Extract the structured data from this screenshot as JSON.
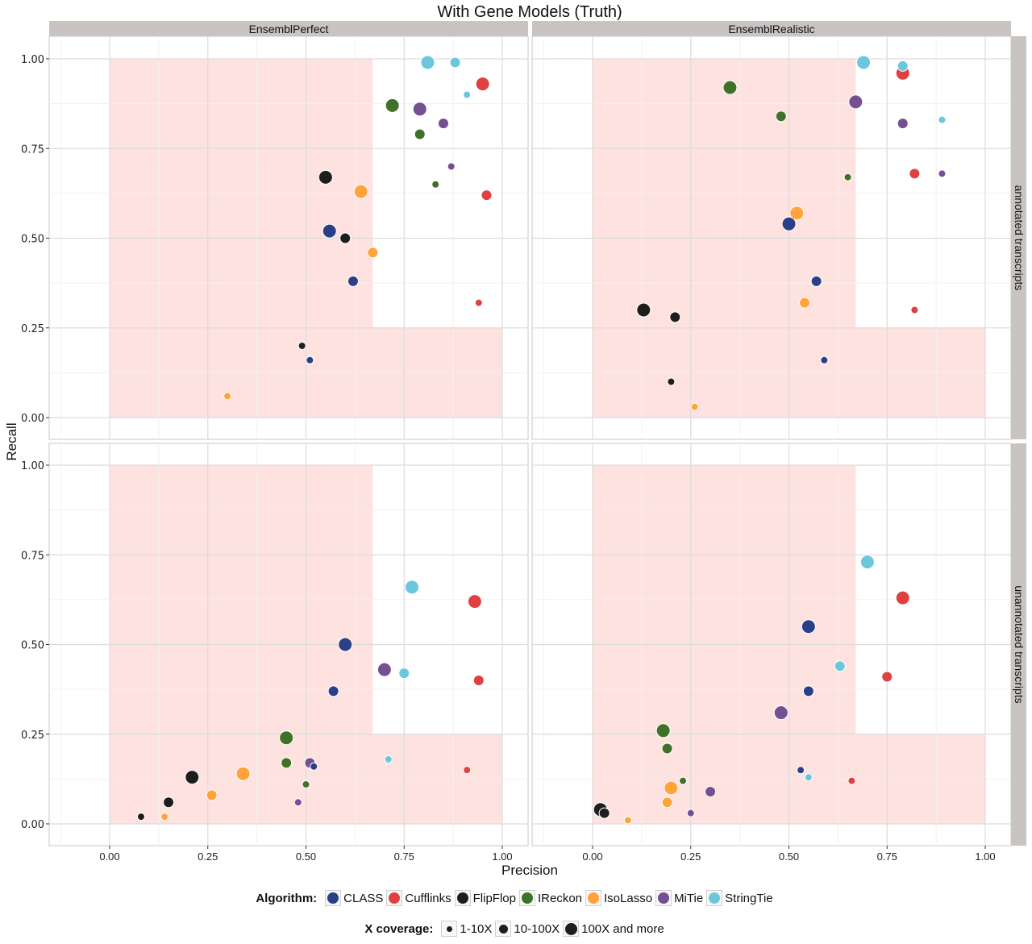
{
  "chart_data": {
    "type": "scatter",
    "title": "With Gene Models (Truth)",
    "xlabel": "Precision",
    "ylabel": "Recall",
    "xlim": [
      -0.15,
      1.06
    ],
    "ylim": [
      -0.06,
      1.07
    ],
    "x_ticks": [
      "0.00",
      "0.25",
      "0.50",
      "0.75",
      "1.00"
    ],
    "y_ticks": [
      "0.00",
      "0.25",
      "0.50",
      "0.75",
      "1.00"
    ],
    "grid": true,
    "columns": [
      "EnsemblPerfect",
      "EnsemblRealistic"
    ],
    "rows": [
      "annotated transcripts",
      "unannotated transcripts"
    ],
    "shaded_region": [
      {
        "x": [
          0,
          0.67
        ],
        "y": [
          0,
          1.0
        ]
      },
      {
        "x": [
          0,
          1.0
        ],
        "y": [
          0,
          0.25
        ]
      }
    ],
    "algorithms": [
      {
        "name": "CLASS",
        "color": "#2b3f86"
      },
      {
        "name": "Cufflinks",
        "color": "#e04040"
      },
      {
        "name": "FlipFlop",
        "color": "#1e1e1e"
      },
      {
        "name": "IReckon",
        "color": "#3f7129"
      },
      {
        "name": "IsoLasso",
        "color": "#ffa33a"
      },
      {
        "name": "MiTie",
        "color": "#744f91"
      },
      {
        "name": "StringTie",
        "color": "#6bc8dc"
      }
    ],
    "coverages": [
      "1-10X",
      "10-100X",
      "100X and more"
    ],
    "panels": [
      {
        "column": "EnsemblPerfect",
        "row": "annotated transcripts",
        "points": [
          {
            "alg": "StringTie",
            "cov": "100X and more",
            "x": 0.81,
            "y": 0.99
          },
          {
            "alg": "StringTie",
            "cov": "10-100X",
            "x": 0.88,
            "y": 0.99
          },
          {
            "alg": "StringTie",
            "cov": "1-10X",
            "x": 0.91,
            "y": 0.9
          },
          {
            "alg": "Cufflinks",
            "cov": "100X and more",
            "x": 0.95,
            "y": 0.93
          },
          {
            "alg": "Cufflinks",
            "cov": "10-100X",
            "x": 0.96,
            "y": 0.62
          },
          {
            "alg": "Cufflinks",
            "cov": "1-10X",
            "x": 0.94,
            "y": 0.32
          },
          {
            "alg": "IReckon",
            "cov": "100X and more",
            "x": 0.72,
            "y": 0.87
          },
          {
            "alg": "IReckon",
            "cov": "10-100X",
            "x": 0.79,
            "y": 0.79
          },
          {
            "alg": "IReckon",
            "cov": "1-10X",
            "x": 0.83,
            "y": 0.65
          },
          {
            "alg": "MiTie",
            "cov": "100X and more",
            "x": 0.79,
            "y": 0.86
          },
          {
            "alg": "MiTie",
            "cov": "10-100X",
            "x": 0.85,
            "y": 0.82
          },
          {
            "alg": "MiTie",
            "cov": "1-10X",
            "x": 0.87,
            "y": 0.7
          },
          {
            "alg": "FlipFlop",
            "cov": "100X and more",
            "x": 0.55,
            "y": 0.67
          },
          {
            "alg": "FlipFlop",
            "cov": "10-100X",
            "x": 0.6,
            "y": 0.5
          },
          {
            "alg": "FlipFlop",
            "cov": "1-10X",
            "x": 0.49,
            "y": 0.2
          },
          {
            "alg": "IsoLasso",
            "cov": "100X and more",
            "x": 0.64,
            "y": 0.63
          },
          {
            "alg": "IsoLasso",
            "cov": "10-100X",
            "x": 0.67,
            "y": 0.46
          },
          {
            "alg": "IsoLasso",
            "cov": "1-10X",
            "x": 0.3,
            "y": 0.06
          },
          {
            "alg": "CLASS",
            "cov": "100X and more",
            "x": 0.56,
            "y": 0.52
          },
          {
            "alg": "CLASS",
            "cov": "10-100X",
            "x": 0.62,
            "y": 0.38
          },
          {
            "alg": "CLASS",
            "cov": "1-10X",
            "x": 0.51,
            "y": 0.16
          }
        ]
      },
      {
        "column": "EnsemblRealistic",
        "row": "annotated transcripts",
        "points": [
          {
            "alg": "StringTie",
            "cov": "100X and more",
            "x": 0.69,
            "y": 0.99
          },
          {
            "alg": "StringTie",
            "cov": "10-100X",
            "x": 0.79,
            "y": 0.98
          },
          {
            "alg": "StringTie",
            "cov": "1-10X",
            "x": 0.89,
            "y": 0.83
          },
          {
            "alg": "Cufflinks",
            "cov": "100X and more",
            "x": 0.79,
            "y": 0.96
          },
          {
            "alg": "Cufflinks",
            "cov": "10-100X",
            "x": 0.82,
            "y": 0.68
          },
          {
            "alg": "Cufflinks",
            "cov": "1-10X",
            "x": 0.82,
            "y": 0.3
          },
          {
            "alg": "IReckon",
            "cov": "100X and more",
            "x": 0.35,
            "y": 0.92
          },
          {
            "alg": "IReckon",
            "cov": "10-100X",
            "x": 0.48,
            "y": 0.84
          },
          {
            "alg": "IReckon",
            "cov": "1-10X",
            "x": 0.65,
            "y": 0.67
          },
          {
            "alg": "MiTie",
            "cov": "100X and more",
            "x": 0.67,
            "y": 0.88
          },
          {
            "alg": "MiTie",
            "cov": "10-100X",
            "x": 0.79,
            "y": 0.82
          },
          {
            "alg": "MiTie",
            "cov": "1-10X",
            "x": 0.89,
            "y": 0.68
          },
          {
            "alg": "IsoLasso",
            "cov": "100X and more",
            "x": 0.52,
            "y": 0.57
          },
          {
            "alg": "IsoLasso",
            "cov": "10-100X",
            "x": 0.54,
            "y": 0.32
          },
          {
            "alg": "IsoLasso",
            "cov": "1-10X",
            "x": 0.26,
            "y": 0.03
          },
          {
            "alg": "CLASS",
            "cov": "100X and more",
            "x": 0.5,
            "y": 0.54
          },
          {
            "alg": "CLASS",
            "cov": "10-100X",
            "x": 0.57,
            "y": 0.38
          },
          {
            "alg": "CLASS",
            "cov": "1-10X",
            "x": 0.59,
            "y": 0.16
          },
          {
            "alg": "FlipFlop",
            "cov": "100X and more",
            "x": 0.13,
            "y": 0.3
          },
          {
            "alg": "FlipFlop",
            "cov": "10-100X",
            "x": 0.21,
            "y": 0.28
          },
          {
            "alg": "FlipFlop",
            "cov": "1-10X",
            "x": 0.2,
            "y": 0.1
          }
        ]
      },
      {
        "column": "EnsemblPerfect",
        "row": "unannotated transcripts",
        "points": [
          {
            "alg": "StringTie",
            "cov": "100X and more",
            "x": 0.77,
            "y": 0.66
          },
          {
            "alg": "StringTie",
            "cov": "10-100X",
            "x": 0.75,
            "y": 0.42
          },
          {
            "alg": "StringTie",
            "cov": "1-10X",
            "x": 0.71,
            "y": 0.18
          },
          {
            "alg": "Cufflinks",
            "cov": "100X and more",
            "x": 0.93,
            "y": 0.62
          },
          {
            "alg": "Cufflinks",
            "cov": "10-100X",
            "x": 0.94,
            "y": 0.4
          },
          {
            "alg": "Cufflinks",
            "cov": "1-10X",
            "x": 0.91,
            "y": 0.15
          },
          {
            "alg": "CLASS",
            "cov": "100X and more",
            "x": 0.6,
            "y": 0.5
          },
          {
            "alg": "CLASS",
            "cov": "10-100X",
            "x": 0.57,
            "y": 0.37
          },
          {
            "alg": "CLASS",
            "cov": "1-10X",
            "x": 0.52,
            "y": 0.16
          },
          {
            "alg": "MiTie",
            "cov": "100X and more",
            "x": 0.7,
            "y": 0.43
          },
          {
            "alg": "MiTie",
            "cov": "10-100X",
            "x": 0.51,
            "y": 0.17
          },
          {
            "alg": "MiTie",
            "cov": "1-10X",
            "x": 0.48,
            "y": 0.06
          },
          {
            "alg": "IReckon",
            "cov": "100X and more",
            "x": 0.45,
            "y": 0.24
          },
          {
            "alg": "IReckon",
            "cov": "10-100X",
            "x": 0.45,
            "y": 0.17
          },
          {
            "alg": "IReckon",
            "cov": "1-10X",
            "x": 0.5,
            "y": 0.11
          },
          {
            "alg": "FlipFlop",
            "cov": "100X and more",
            "x": 0.21,
            "y": 0.13
          },
          {
            "alg": "FlipFlop",
            "cov": "10-100X",
            "x": 0.15,
            "y": 0.06
          },
          {
            "alg": "FlipFlop",
            "cov": "1-10X",
            "x": 0.08,
            "y": 0.02
          },
          {
            "alg": "IsoLasso",
            "cov": "100X and more",
            "x": 0.34,
            "y": 0.14
          },
          {
            "alg": "IsoLasso",
            "cov": "10-100X",
            "x": 0.26,
            "y": 0.08
          },
          {
            "alg": "IsoLasso",
            "cov": "1-10X",
            "x": 0.14,
            "y": 0.02
          }
        ]
      },
      {
        "column": "EnsemblRealistic",
        "row": "unannotated transcripts",
        "points": [
          {
            "alg": "StringTie",
            "cov": "100X and more",
            "x": 0.7,
            "y": 0.73
          },
          {
            "alg": "StringTie",
            "cov": "10-100X",
            "x": 0.63,
            "y": 0.44
          },
          {
            "alg": "StringTie",
            "cov": "1-10X",
            "x": 0.55,
            "y": 0.13
          },
          {
            "alg": "Cufflinks",
            "cov": "100X and more",
            "x": 0.79,
            "y": 0.63
          },
          {
            "alg": "Cufflinks",
            "cov": "10-100X",
            "x": 0.75,
            "y": 0.41
          },
          {
            "alg": "Cufflinks",
            "cov": "1-10X",
            "x": 0.66,
            "y": 0.12
          },
          {
            "alg": "CLASS",
            "cov": "100X and more",
            "x": 0.55,
            "y": 0.55
          },
          {
            "alg": "CLASS",
            "cov": "10-100X",
            "x": 0.55,
            "y": 0.37
          },
          {
            "alg": "CLASS",
            "cov": "1-10X",
            "x": 0.53,
            "y": 0.15
          },
          {
            "alg": "MiTie",
            "cov": "100X and more",
            "x": 0.48,
            "y": 0.31
          },
          {
            "alg": "MiTie",
            "cov": "10-100X",
            "x": 0.3,
            "y": 0.09
          },
          {
            "alg": "MiTie",
            "cov": "1-10X",
            "x": 0.25,
            "y": 0.03
          },
          {
            "alg": "IReckon",
            "cov": "100X and more",
            "x": 0.18,
            "y": 0.26
          },
          {
            "alg": "IReckon",
            "cov": "10-100X",
            "x": 0.19,
            "y": 0.21
          },
          {
            "alg": "IReckon",
            "cov": "1-10X",
            "x": 0.23,
            "y": 0.12
          },
          {
            "alg": "IsoLasso",
            "cov": "100X and more",
            "x": 0.2,
            "y": 0.1
          },
          {
            "alg": "IsoLasso",
            "cov": "10-100X",
            "x": 0.19,
            "y": 0.06
          },
          {
            "alg": "IsoLasso",
            "cov": "1-10X",
            "x": 0.09,
            "y": 0.01
          },
          {
            "alg": "FlipFlop",
            "cov": "100X and more",
            "x": 0.02,
            "y": 0.04
          },
          {
            "alg": "FlipFlop",
            "cov": "10-100X",
            "x": 0.03,
            "y": 0.03
          }
        ]
      }
    ]
  },
  "legend": {
    "algorithm_title": "Algorithm:",
    "coverage_title": "X coverage:"
  }
}
